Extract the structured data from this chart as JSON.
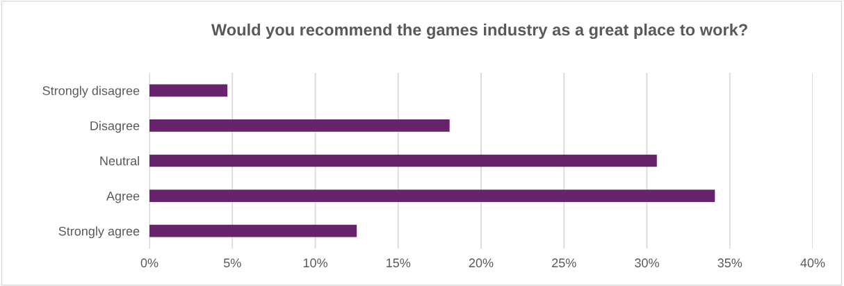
{
  "chart_data": {
    "type": "bar",
    "orientation": "horizontal",
    "title": "Would you recommend the games industry as a great place to work?",
    "categories": [
      "Strongly disagree",
      "Disagree",
      "Neutral",
      "Agree",
      "Strongly agree"
    ],
    "values": [
      4.7,
      18.1,
      30.6,
      34.1,
      12.5
    ],
    "color": "#68236d",
    "xlim": [
      0,
      40
    ],
    "xticks": [
      {
        "value": 0,
        "label": "0%"
      },
      {
        "value": 5,
        "label": "5%"
      },
      {
        "value": 10,
        "label": "10%"
      },
      {
        "value": 15,
        "label": "15%"
      },
      {
        "value": 20,
        "label": "20%"
      },
      {
        "value": 25,
        "label": "25%"
      },
      {
        "value": 30,
        "label": "30%"
      },
      {
        "value": 35,
        "label": "35%"
      },
      {
        "value": 40,
        "label": "40%"
      }
    ],
    "grid": "x",
    "legend": false
  }
}
